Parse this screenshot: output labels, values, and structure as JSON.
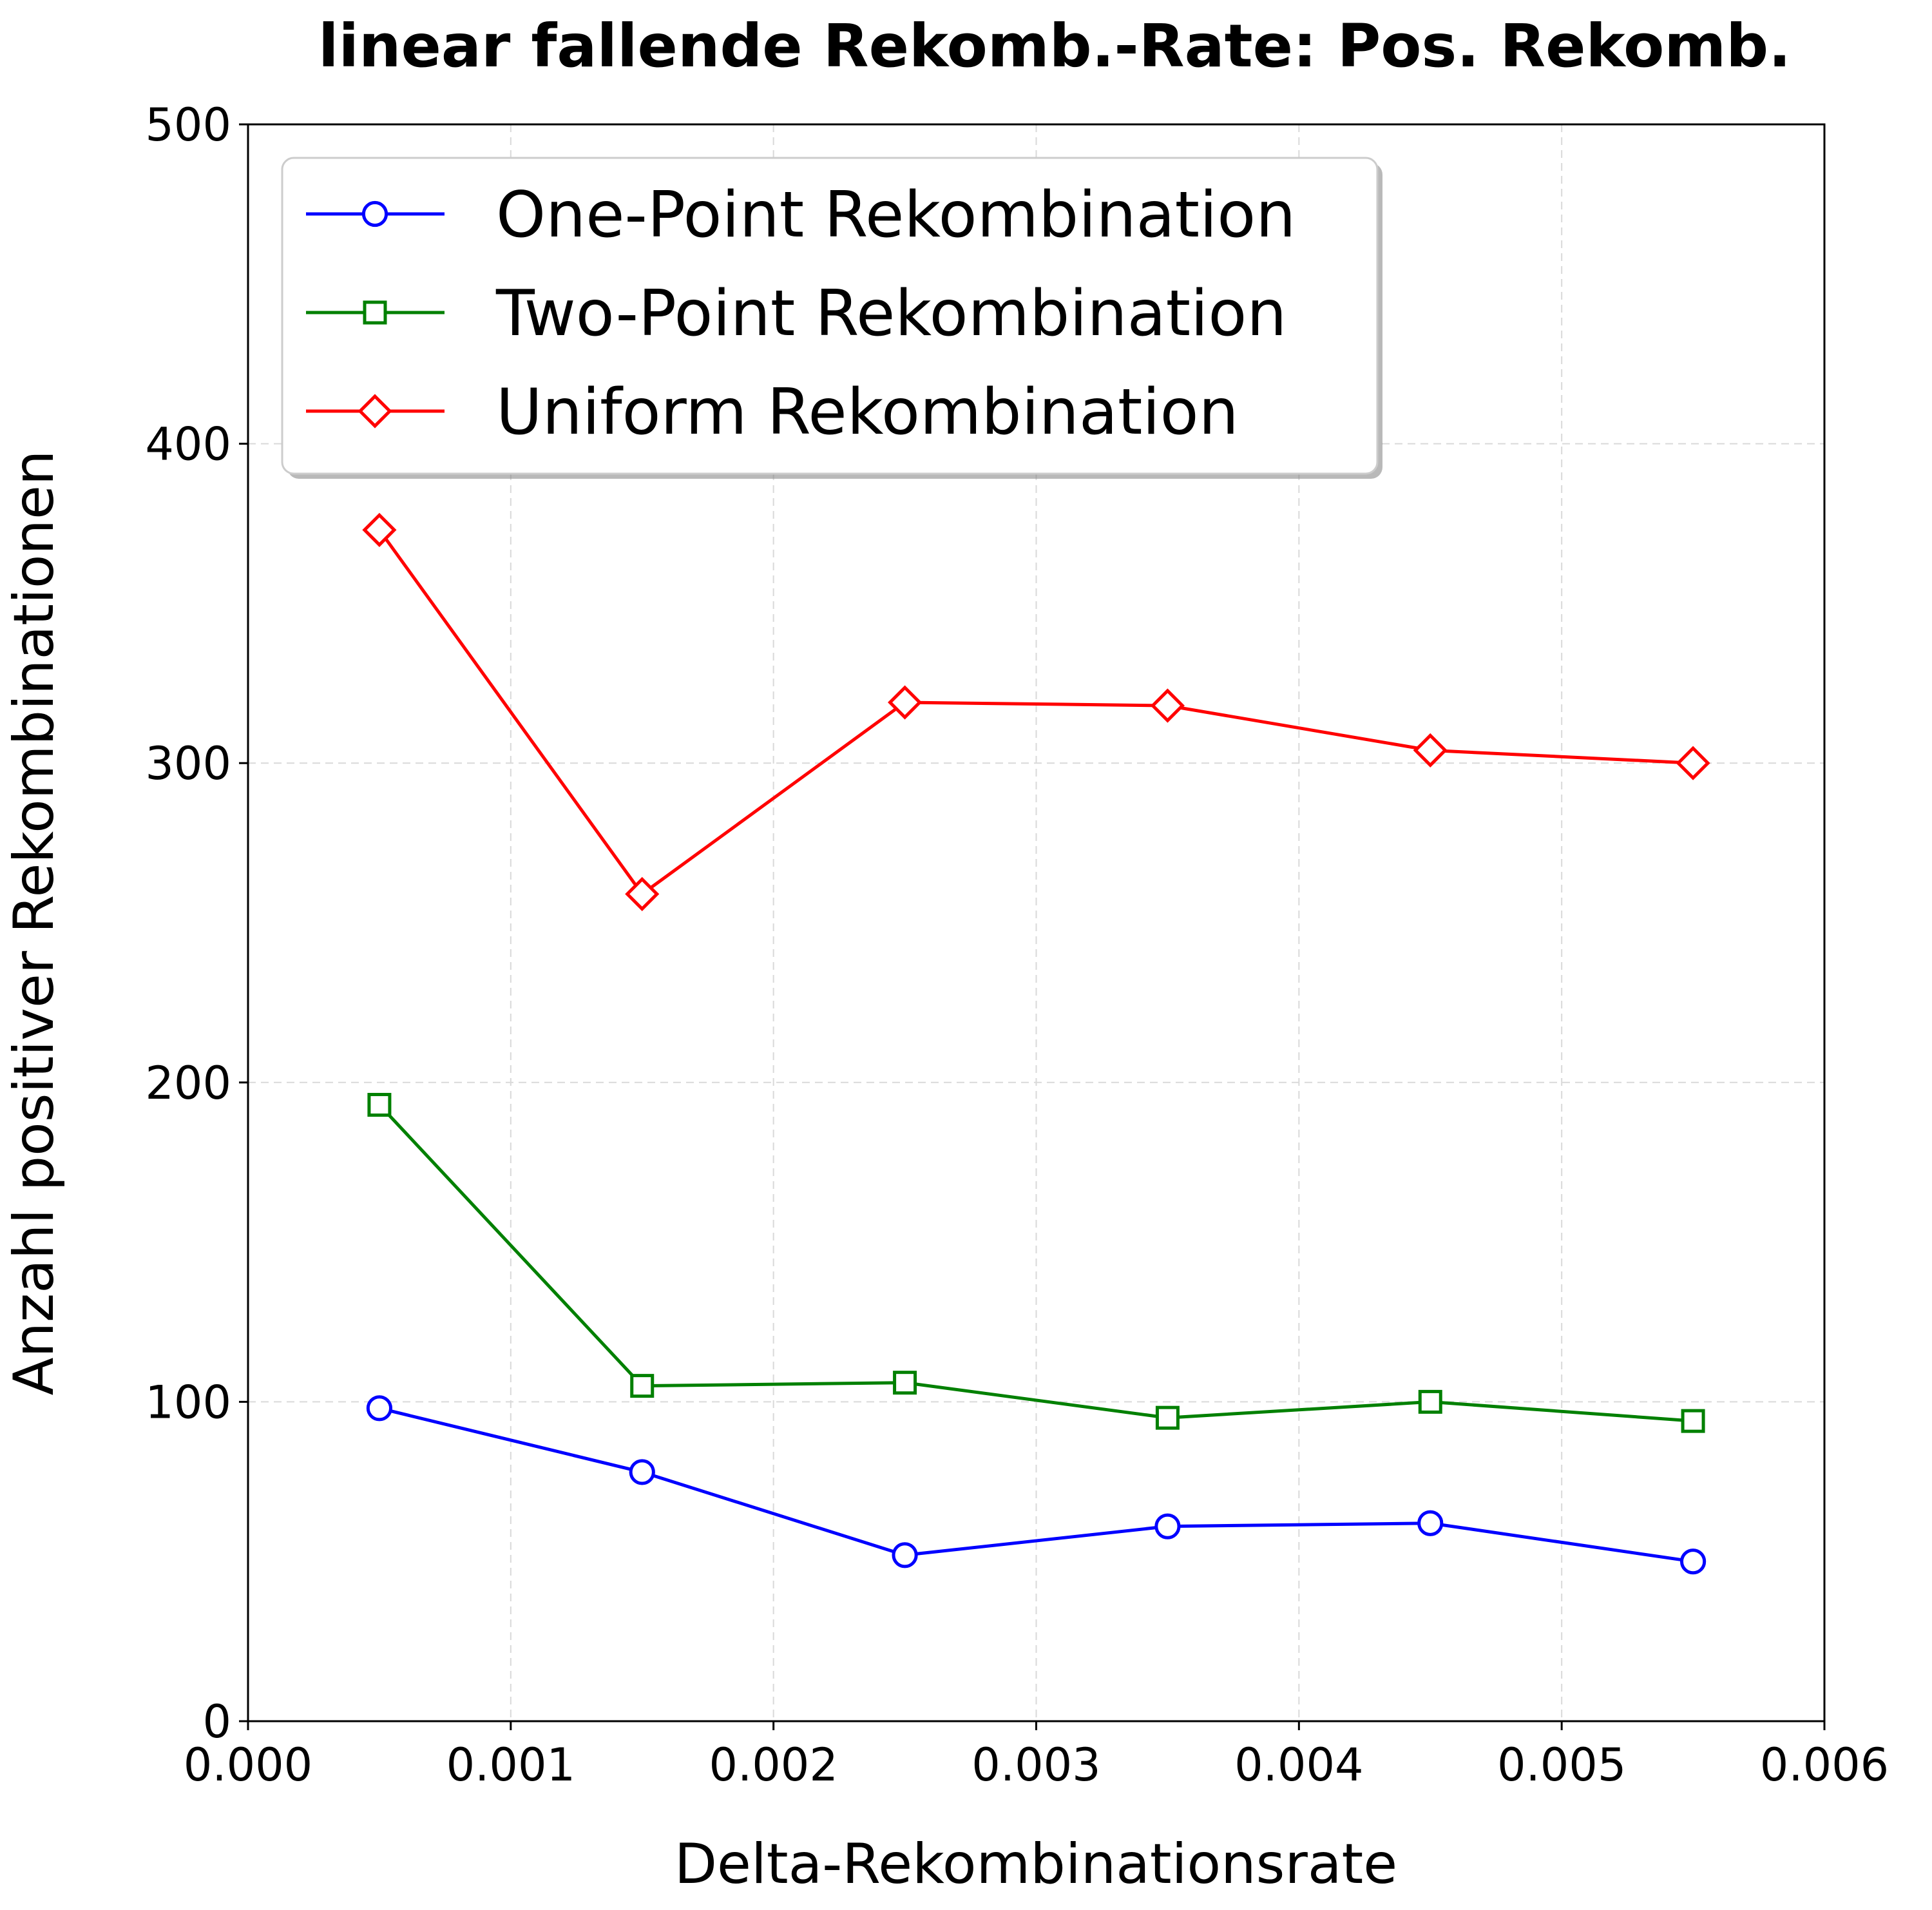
{
  "chart_data": {
    "type": "line",
    "title": "linear fallende Rekomb.-Rate: Pos. Rekomb.",
    "xlabel": "Delta-Rekombinationsrate",
    "ylabel": "Anzahl positiver Rekombinationen",
    "xlim": [
      0,
      0.006
    ],
    "ylim": [
      0,
      500
    ],
    "xticks": [
      0,
      0.001,
      0.002,
      0.003,
      0.004,
      0.005,
      0.006
    ],
    "xtick_labels": [
      "0.000",
      "0.001",
      "0.002",
      "0.003",
      "0.004",
      "0.005",
      "0.006"
    ],
    "yticks": [
      0,
      100,
      200,
      300,
      400,
      500
    ],
    "ytick_labels": [
      "0",
      "100",
      "200",
      "300",
      "400",
      "500"
    ],
    "grid": true,
    "legend_position": "top-left",
    "x": [
      0.0005,
      0.0015,
      0.0025,
      0.0035,
      0.0045,
      0.0055
    ],
    "series": [
      {
        "name": "One-Point Rekombination",
        "color": "#0000ff",
        "marker": "circle",
        "values": [
          98,
          78,
          52,
          61,
          62,
          50
        ]
      },
      {
        "name": "Two-Point Rekombination",
        "color": "#008000",
        "marker": "square",
        "values": [
          193,
          105,
          106,
          95,
          100,
          94
        ]
      },
      {
        "name": "Uniform Rekombination",
        "color": "#ff0000",
        "marker": "diamond",
        "values": [
          373,
          259,
          319,
          318,
          304,
          300
        ]
      }
    ]
  }
}
